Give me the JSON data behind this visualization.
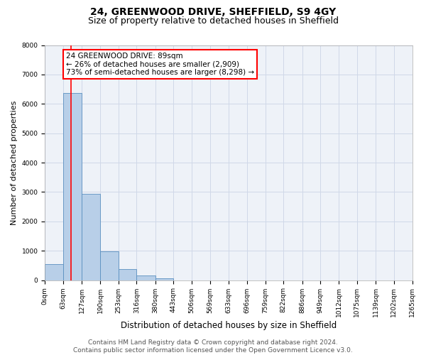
{
  "title": "24, GREENWOOD DRIVE, SHEFFIELD, S9 4GY",
  "subtitle": "Size of property relative to detached houses in Sheffield",
  "xlabel": "Distribution of detached houses by size in Sheffield",
  "ylabel": "Number of detached properties",
  "bar_edges": [
    0,
    63,
    127,
    190,
    253,
    316,
    380,
    443,
    506,
    569,
    633,
    696,
    759,
    822,
    886,
    949,
    1012,
    1075,
    1139,
    1202,
    1265
  ],
  "bar_heights": [
    550,
    6380,
    2930,
    970,
    370,
    150,
    70,
    0,
    0,
    0,
    0,
    0,
    0,
    0,
    0,
    0,
    0,
    0,
    0,
    0
  ],
  "bar_color": "#b8cfe8",
  "bar_edgecolor": "#5a8fc0",
  "property_line_x": 89,
  "property_line_color": "red",
  "annotation_box_text": "24 GREENWOOD DRIVE: 89sqm\n← 26% of detached houses are smaller (2,909)\n73% of semi-detached houses are larger (8,298) →",
  "annotation_box_color": "red",
  "annotation_box_facecolor": "white",
  "ylim": [
    0,
    8000
  ],
  "yticks": [
    0,
    1000,
    2000,
    3000,
    4000,
    5000,
    6000,
    7000,
    8000
  ],
  "tick_labels": [
    "0sqm",
    "63sqm",
    "127sqm",
    "190sqm",
    "253sqm",
    "316sqm",
    "380sqm",
    "443sqm",
    "506sqm",
    "569sqm",
    "633sqm",
    "696sqm",
    "759sqm",
    "822sqm",
    "886sqm",
    "949sqm",
    "1012sqm",
    "1075sqm",
    "1139sqm",
    "1202sqm",
    "1265sqm"
  ],
  "grid_color": "#d0d8e8",
  "bg_color": "#eef2f8",
  "footer_text": "Contains HM Land Registry data © Crown copyright and database right 2024.\nContains public sector information licensed under the Open Government Licence v3.0.",
  "title_fontsize": 10,
  "subtitle_fontsize": 9,
  "xlabel_fontsize": 8.5,
  "ylabel_fontsize": 8,
  "tick_fontsize": 6.5,
  "footer_fontsize": 6.5,
  "annot_fontsize": 7.5
}
